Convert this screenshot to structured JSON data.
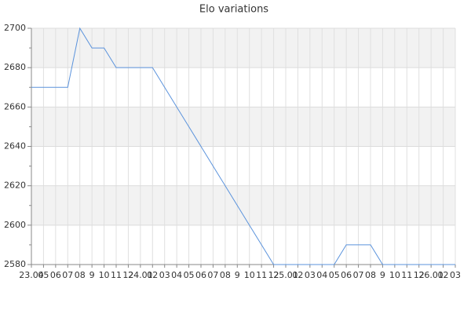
{
  "chart_data": {
    "type": "line",
    "title": "Elo variations",
    "categories": [
      "23.04",
      "05",
      "06",
      "07",
      "08",
      "9",
      "10",
      "11",
      "12",
      "24.01",
      "02",
      "03",
      "04",
      "05",
      "06",
      "07",
      "08",
      "9",
      "10",
      "11",
      "12",
      "25.01",
      "02",
      "03",
      "04",
      "05",
      "06",
      "07",
      "08",
      "9",
      "10",
      "11",
      "12",
      "26.01",
      "02",
      "03"
    ],
    "series": [
      {
        "name": "Elo",
        "color": "#5b93dc",
        "values": [
          2670,
          2670,
          2670,
          2670,
          2700,
          2690,
          2690,
          2680,
          2680,
          2680,
          2680,
          2670,
          2660,
          2650,
          2640,
          2630,
          2620,
          2610,
          2600,
          2590,
          2580,
          2580,
          2580,
          2580,
          2580,
          2580,
          2590,
          2590,
          2590,
          2580,
          2580,
          2580,
          2580,
          2580,
          2580,
          2580
        ]
      }
    ],
    "ylim": [
      2580,
      2700
    ],
    "yticks": [
      2580,
      2600,
      2620,
      2640,
      2660,
      2680,
      2700
    ],
    "grid": true
  }
}
